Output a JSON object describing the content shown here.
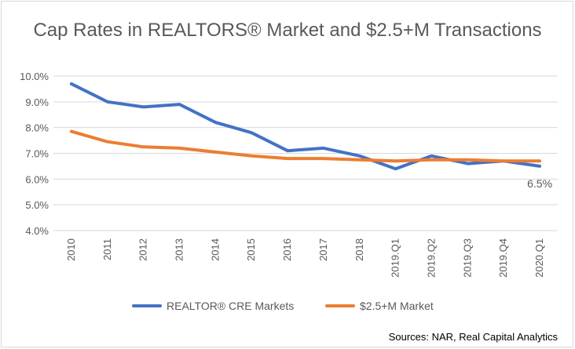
{
  "chart_data": {
    "type": "line",
    "title": "Cap Rates in REALTORS® Market and $2.5+M Transactions",
    "categories": [
      "2010",
      "2011",
      "2012",
      "2013",
      "2014",
      "2015",
      "2016",
      "2017",
      "2018",
      "2019.Q1",
      "2019.Q2",
      "2019.Q3",
      "2019.Q4",
      "2020.Q1"
    ],
    "series": [
      {
        "name": "REALTOR® CRE Markets",
        "color": "#4472C4",
        "values": [
          9.7,
          9.0,
          8.8,
          8.9,
          8.2,
          7.8,
          7.1,
          7.2,
          6.9,
          6.4,
          6.9,
          6.6,
          6.7,
          6.5
        ]
      },
      {
        "name": "$2.5+M Market",
        "color": "#ED7D31",
        "values": [
          7.85,
          7.45,
          7.25,
          7.2,
          7.05,
          6.9,
          6.8,
          6.8,
          6.75,
          6.7,
          6.75,
          6.75,
          6.7,
          6.7
        ]
      }
    ],
    "ylim": [
      4.0,
      10.0
    ],
    "yticks": [
      "4.0%",
      "5.0%",
      "6.0%",
      "7.0%",
      "8.0%",
      "9.0%",
      "10.0%"
    ],
    "annotation": "6.5%",
    "grid": true,
    "legend": "bottom"
  },
  "source": "Sources: NAR, Real Capital Analytics"
}
